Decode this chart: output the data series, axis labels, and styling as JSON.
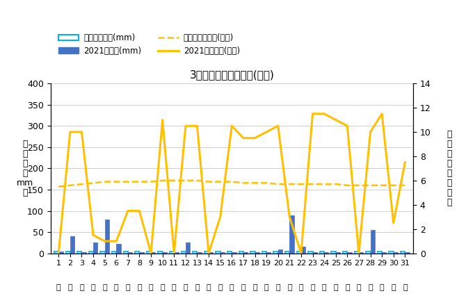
{
  "title": "3月降水量・日照時間(日別)",
  "days": [
    1,
    2,
    3,
    4,
    5,
    6,
    7,
    8,
    9,
    10,
    11,
    12,
    13,
    14,
    15,
    16,
    17,
    18,
    19,
    20,
    21,
    22,
    23,
    24,
    25,
    26,
    27,
    28,
    29,
    30,
    31
  ],
  "precip_avg": [
    5,
    5,
    5,
    5,
    5,
    5,
    5,
    5,
    5,
    5,
    5,
    5,
    5,
    5,
    5,
    5,
    5,
    5,
    5,
    5,
    5,
    5,
    5,
    5,
    5,
    5,
    5,
    5,
    5,
    5,
    5
  ],
  "precip_2021": [
    5,
    40,
    3,
    25,
    80,
    22,
    3,
    3,
    3,
    3,
    3,
    25,
    3,
    3,
    3,
    3,
    3,
    3,
    3,
    10,
    90,
    15,
    3,
    3,
    3,
    3,
    3,
    55,
    3,
    3,
    3
  ],
  "sunshine_avg": [
    5.5,
    5.6,
    5.7,
    5.8,
    5.9,
    5.9,
    5.9,
    5.9,
    5.9,
    6.0,
    6.0,
    6.0,
    6.0,
    5.9,
    5.9,
    5.9,
    5.8,
    5.8,
    5.8,
    5.7,
    5.7,
    5.7,
    5.7,
    5.7,
    5.7,
    5.6,
    5.6,
    5.6,
    5.6,
    5.6,
    5.6
  ],
  "sunshine_2021": [
    0,
    10,
    10,
    1.5,
    1,
    1,
    3.5,
    3.5,
    0,
    11,
    0,
    10.5,
    10.5,
    0,
    3,
    10.5,
    9.5,
    9.5,
    10,
    10.5,
    3,
    0,
    11.5,
    11.5,
    11,
    10.5,
    0,
    10,
    11.5,
    2.5,
    7.5
  ],
  "ylabel_left": "降\n水\n量\n（\nmm\n）",
  "ylabel_right": "日\n照\n時\n間\n（\n時\n間\n）",
  "ylim_left": [
    0,
    400
  ],
  "ylim_right": [
    0,
    14
  ],
  "yticks_left": [
    0,
    50,
    100,
    150,
    200,
    250,
    300,
    350,
    400
  ],
  "yticks_right": [
    0,
    2,
    4,
    6,
    8,
    10,
    12,
    14
  ],
  "bar_avg_color": "#00B0F0",
  "bar_2021_color": "#4472C4",
  "line_avg_color": "#FFC000",
  "line_2021_color": "#FFC000",
  "background_color": "#FFFFFF",
  "legend_labels": [
    "降水量平年値(mm)",
    "2021降水量(mm)",
    "日照時間平年値(時間)",
    "2021日照時間(時間)"
  ]
}
